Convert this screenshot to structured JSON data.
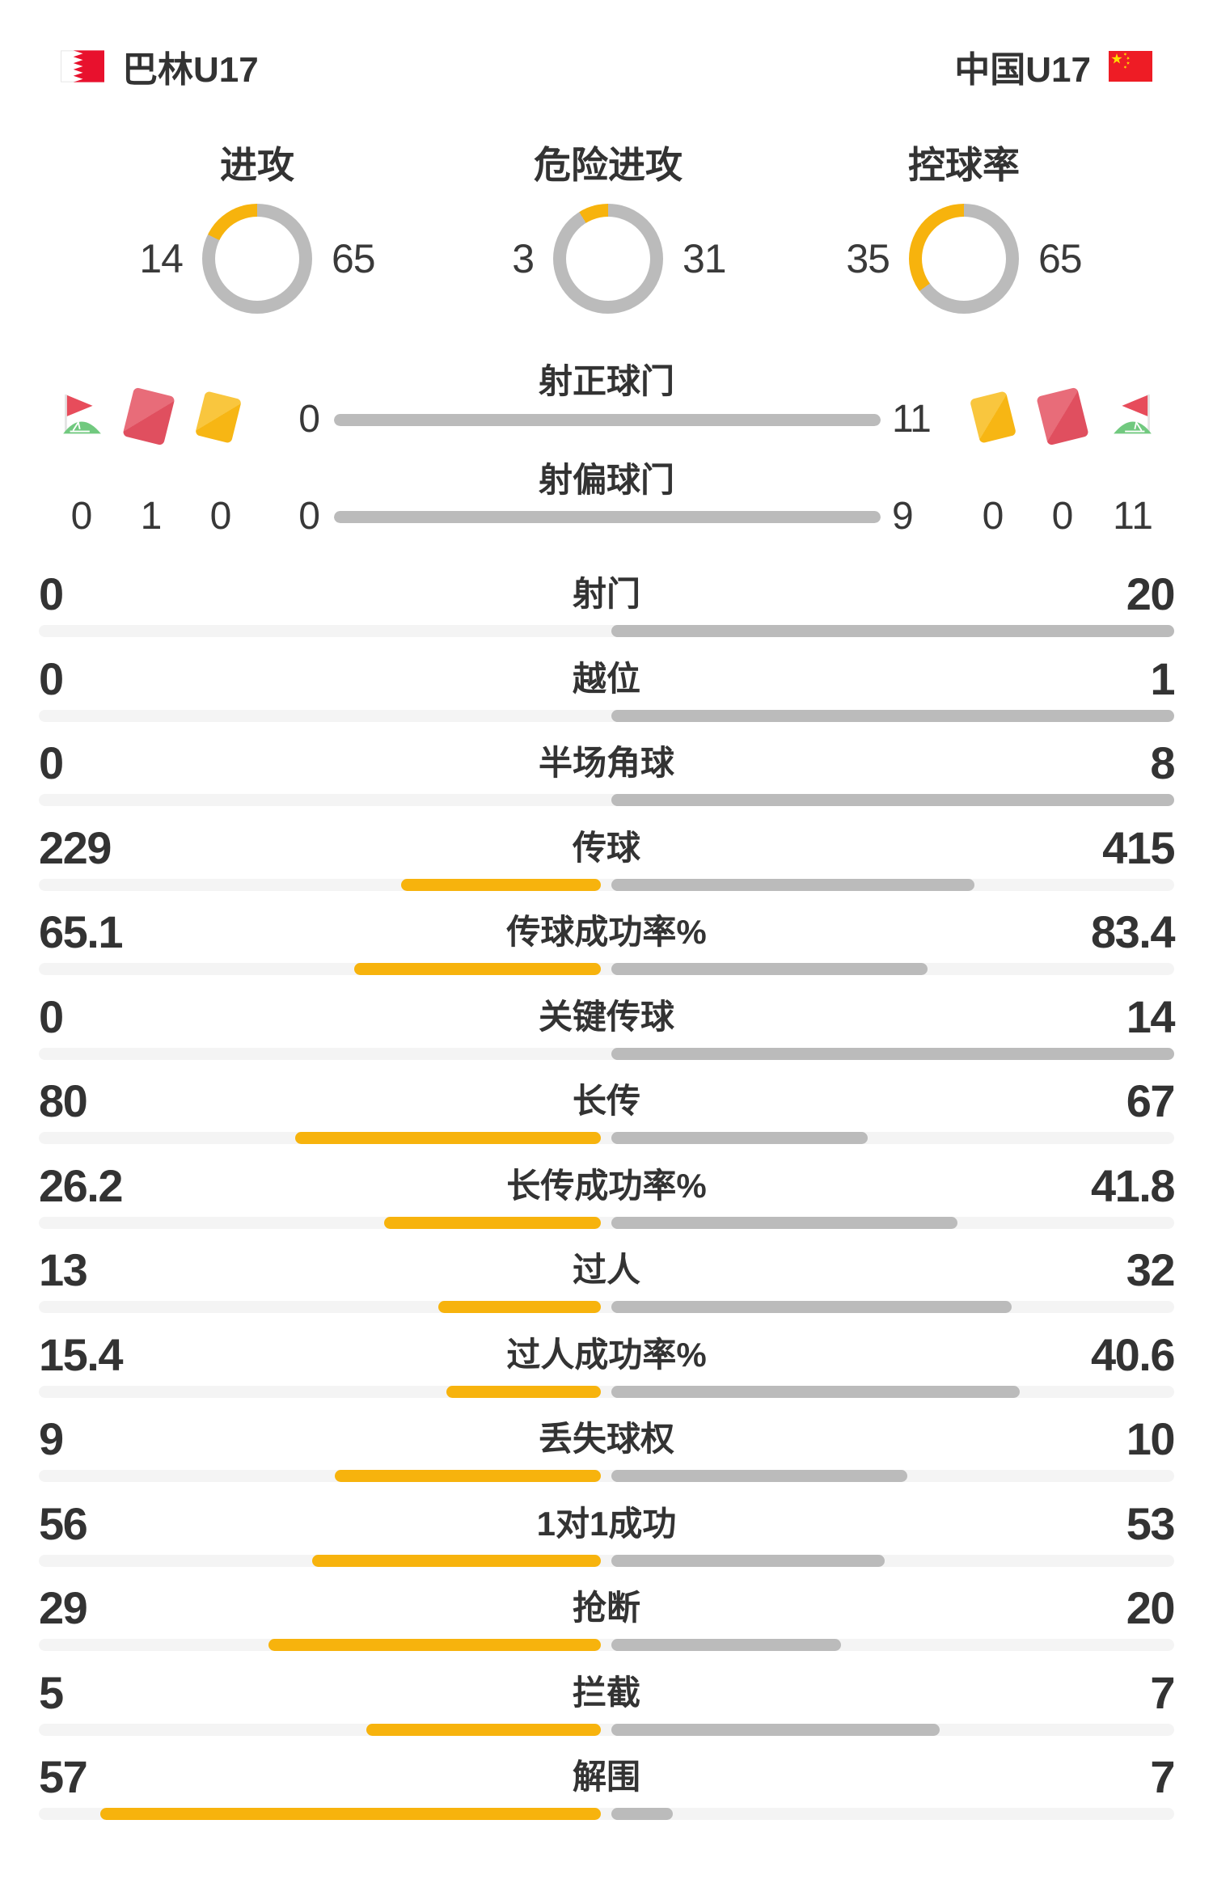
{
  "header": {
    "home": {
      "name": "巴林U17",
      "flag": "bahrain-flag"
    },
    "away": {
      "name": "中国U17",
      "flag": "china-flag"
    }
  },
  "chart_data": {
    "type": "donut",
    "note": "three donut gauges, yellow arc = home share drawn counter-clockwise from top, gray = away",
    "gauges": [
      {
        "title": "进攻",
        "home": 14,
        "away": 65
      },
      {
        "title": "危险进攻",
        "home": 3,
        "away": 31
      },
      {
        "title": "控球率",
        "home": 35,
        "away": 65
      }
    ]
  },
  "discipline": {
    "home": {
      "icons": [
        "corner-flag",
        "red-card",
        "yellow-card"
      ],
      "counts": [
        0,
        1,
        0
      ]
    },
    "away": {
      "icons": [
        "yellow-card",
        "red-card",
        "corner-flag"
      ],
      "counts": [
        0,
        0,
        11
      ]
    }
  },
  "shot_rows": [
    {
      "label": "射正球门",
      "home": 0,
      "away": 11
    },
    {
      "label": "射偏球门",
      "home": 0,
      "away": 9
    }
  ],
  "stats": [
    {
      "label": "射门",
      "home": 0,
      "away": 20
    },
    {
      "label": "越位",
      "home": 0,
      "away": 1
    },
    {
      "label": "半场角球",
      "home": 0,
      "away": 8
    },
    {
      "label": "传球",
      "home": 229,
      "away": 415
    },
    {
      "label": "传球成功率%",
      "home": 65.1,
      "away": 83.4
    },
    {
      "label": "关键传球",
      "home": 0,
      "away": 14
    },
    {
      "label": "长传",
      "home": 80,
      "away": 67
    },
    {
      "label": "长传成功率%",
      "home": 26.2,
      "away": 41.8
    },
    {
      "label": "过人",
      "home": 13,
      "away": 32
    },
    {
      "label": "过人成功率%",
      "home": 15.4,
      "away": 40.6
    },
    {
      "label": "丢失球权",
      "home": 9,
      "away": 10
    },
    {
      "label": "1对1成功",
      "home": 56,
      "away": 53
    },
    {
      "label": "抢断",
      "home": 29,
      "away": 20
    },
    {
      "label": "拦截",
      "home": 5,
      "away": 7
    },
    {
      "label": "解围",
      "home": 57,
      "away": 7
    }
  ],
  "colors": {
    "home_accent": "#F7B30D",
    "away_accent": "#BBBBBB",
    "track": "#F4F4F4",
    "text": "#333333",
    "red_card": "#E04F5F",
    "yellow_card": "#F7B614",
    "corner_flag_red": "#E74C5B",
    "corner_flag_green": "#71C97F",
    "bahrain_red": "#E8112D",
    "china_red": "#EE1C25",
    "china_star_yellow": "#FFDE00"
  }
}
